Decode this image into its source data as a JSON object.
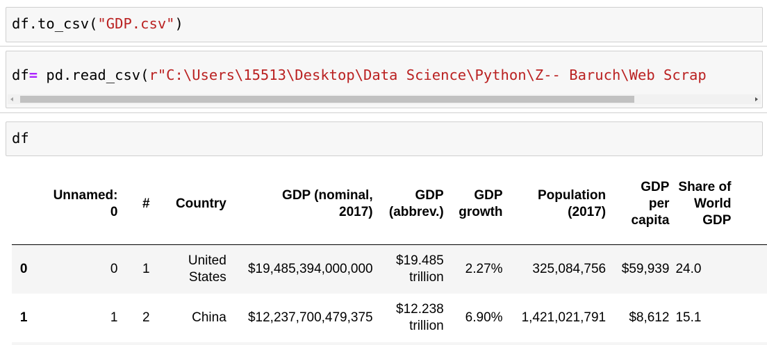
{
  "cells": [
    {
      "code": [
        {
          "text": "df.to_csv(",
          "kind": "plain"
        },
        {
          "text": "\"GDP.csv\"",
          "kind": "string"
        },
        {
          "text": ")",
          "kind": "plain"
        }
      ]
    },
    {
      "code": [
        {
          "text": "df",
          "kind": "plain"
        },
        {
          "text": "=",
          "kind": "operator"
        },
        {
          "text": " pd.read_csv(",
          "kind": "plain"
        },
        {
          "text": "r\"C:\\Users\\15513\\Desktop\\Data Science\\Python\\Z-- Baruch\\Web Scrap",
          "kind": "string"
        }
      ]
    },
    {
      "code": [
        {
          "text": "df",
          "kind": "plain"
        }
      ]
    }
  ],
  "table": {
    "header": [
      "",
      "Unnamed: 0",
      "#",
      "Country",
      "GDP (nominal, 2017)",
      "GDP (abbrev.)",
      "GDP growth",
      "Population (2017)",
      "GDP per capita",
      "Share of World GDP"
    ],
    "rows": [
      [
        "0",
        "0",
        "1",
        "United States",
        "$19,485,394,000,000",
        "$19.485 trillion",
        "2.27%",
        "325,084,756",
        "$59,939",
        "24.0"
      ],
      [
        "1",
        "1",
        "2",
        "China",
        "$12,237,700,479,375",
        "$12.238 trillion",
        "6.90%",
        "1,421,021,791",
        "$8,612",
        "15.1"
      ]
    ]
  }
}
